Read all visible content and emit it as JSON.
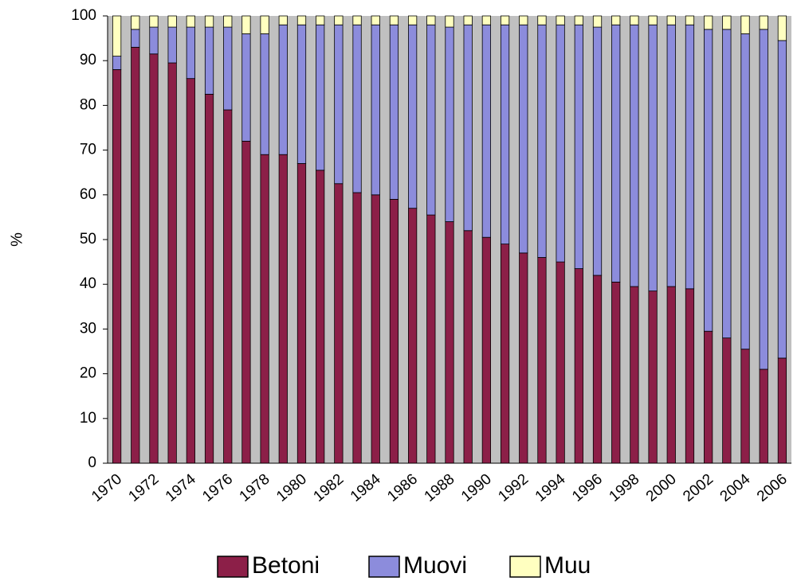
{
  "chart_data": {
    "type": "stacked-bar",
    "y_label": "%",
    "categories": [
      "1970",
      null,
      "1972",
      null,
      "1974",
      null,
      "1976",
      null,
      "1978",
      null,
      "1980",
      null,
      "1982",
      null,
      "1984",
      null,
      "1986",
      null,
      "1988",
      null,
      "1990",
      null,
      "1992",
      null,
      "1994",
      null,
      "1996",
      null,
      "1998",
      null,
      "2000",
      null,
      "2002",
      null,
      "2004",
      null,
      "2006"
    ],
    "series": [
      {
        "name": "Betoni",
        "color": "#8c1f48",
        "values": [
          88,
          93,
          91.5,
          89.5,
          86,
          82.5,
          79,
          72,
          69,
          69,
          67,
          65.5,
          62.5,
          60.5,
          60,
          59,
          57,
          55.5,
          54,
          52,
          50.5,
          49,
          47,
          46,
          45,
          43.5,
          42,
          40.5,
          39.5,
          38.5,
          39.5,
          39,
          29.5,
          28,
          25.5,
          21,
          23.5
        ]
      },
      {
        "name": "Muovi",
        "color": "#8c8cdc",
        "values": [
          3,
          4,
          6,
          8,
          11.5,
          15,
          18.5,
          24,
          27,
          29,
          31,
          32.5,
          35.5,
          37.5,
          38,
          39,
          41,
          42.5,
          43.5,
          46,
          47.5,
          49,
          51,
          52,
          53,
          54.5,
          55.5,
          57.5,
          58.5,
          59.5,
          58.5,
          59,
          67.5,
          69,
          70.5,
          76,
          71
        ]
      },
      {
        "name": "Muu",
        "color": "#ffffc0",
        "values": [
          9,
          3,
          2.5,
          2.5,
          2.5,
          2.5,
          2.5,
          4,
          4,
          2,
          2,
          2,
          2,
          2,
          2,
          2,
          2,
          2,
          2.5,
          2,
          2,
          2,
          2,
          2,
          2,
          2,
          2.5,
          2,
          2,
          2,
          2,
          2,
          3,
          3,
          4,
          3,
          5.5
        ]
      }
    ],
    "ylim": [
      0,
      100
    ],
    "yticks": [
      0,
      10,
      20,
      30,
      40,
      50,
      60,
      70,
      80,
      90,
      100
    ],
    "background": "#c0c0c0"
  }
}
